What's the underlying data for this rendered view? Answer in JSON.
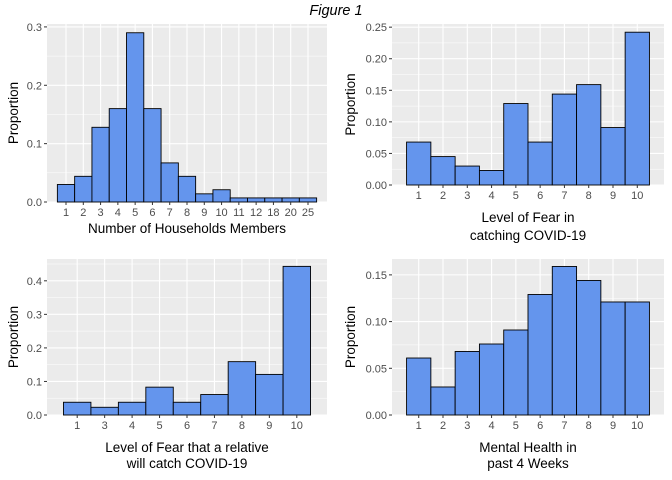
{
  "figure_title": "Figure 1",
  "chart_data": [
    {
      "type": "bar",
      "position": "top-left",
      "categories": [
        "1",
        "2",
        "3",
        "4",
        "5",
        "6",
        "7",
        "8",
        "9",
        "10",
        "11",
        "12",
        "18",
        "20",
        "25"
      ],
      "values": [
        0.03,
        0.044,
        0.128,
        0.16,
        0.29,
        0.16,
        0.067,
        0.044,
        0.014,
        0.021,
        0.007,
        0.007,
        0.007,
        0.007,
        0.007
      ],
      "xlabel": [
        "Number of Households Members"
      ],
      "ylabel": "Proportion",
      "ylim": [
        0,
        0.305
      ],
      "yticks": [
        0,
        0.1,
        0.2,
        0.3
      ],
      "ytick_labels": [
        "0.0",
        "0.1",
        "0.2",
        "0.3"
      ],
      "grid": true
    },
    {
      "type": "bar",
      "position": "top-right",
      "categories": [
        "1",
        "2",
        "3",
        "4",
        "5",
        "6",
        "7",
        "8",
        "9",
        "10"
      ],
      "values": [
        0.068,
        0.045,
        0.03,
        0.023,
        0.129,
        0.068,
        0.144,
        0.159,
        0.091,
        0.242
      ],
      "xlabel": [
        "Level of Fear in",
        "catching COVID-19"
      ],
      "ylabel": "Proportion",
      "ylim": [
        0,
        0.255
      ],
      "yticks": [
        0,
        0.05,
        0.1,
        0.15,
        0.2,
        0.25
      ],
      "ytick_labels": [
        "0.00",
        "0.05",
        "0.10",
        "0.15",
        "0.20",
        "0.25"
      ],
      "grid": true
    },
    {
      "type": "bar",
      "position": "bottom-left",
      "categories": [
        "1",
        "3",
        "4",
        "5",
        "6",
        "7",
        "8",
        "9",
        "10"
      ],
      "values": [
        0.038,
        0.023,
        0.038,
        0.083,
        0.038,
        0.061,
        0.159,
        0.121,
        0.443
      ],
      "xlabel": [
        "Level of Fear that a relative",
        "will catch COVID-19"
      ],
      "ylabel": "Proportion",
      "ylim": [
        0,
        0.465
      ],
      "yticks": [
        0,
        0.1,
        0.2,
        0.3,
        0.4
      ],
      "ytick_labels": [
        "0.0",
        "0.1",
        "0.2",
        "0.3",
        "0.4"
      ],
      "grid": true
    },
    {
      "type": "bar",
      "position": "bottom-right",
      "categories": [
        "1",
        "2",
        "3",
        "4",
        "5",
        "6",
        "7",
        "8",
        "9",
        "10"
      ],
      "values": [
        0.061,
        0.03,
        0.068,
        0.076,
        0.091,
        0.129,
        0.159,
        0.144,
        0.121,
        0.121
      ],
      "xlabel": [
        "Mental Health in",
        "past 4 Weeks"
      ],
      "ylabel": "Proportion",
      "ylim": [
        0,
        0.167
      ],
      "yticks": [
        0,
        0.05,
        0.1,
        0.15
      ],
      "ytick_labels": [
        "0.00",
        "0.05",
        "0.10",
        "0.15"
      ],
      "grid": true
    }
  ]
}
